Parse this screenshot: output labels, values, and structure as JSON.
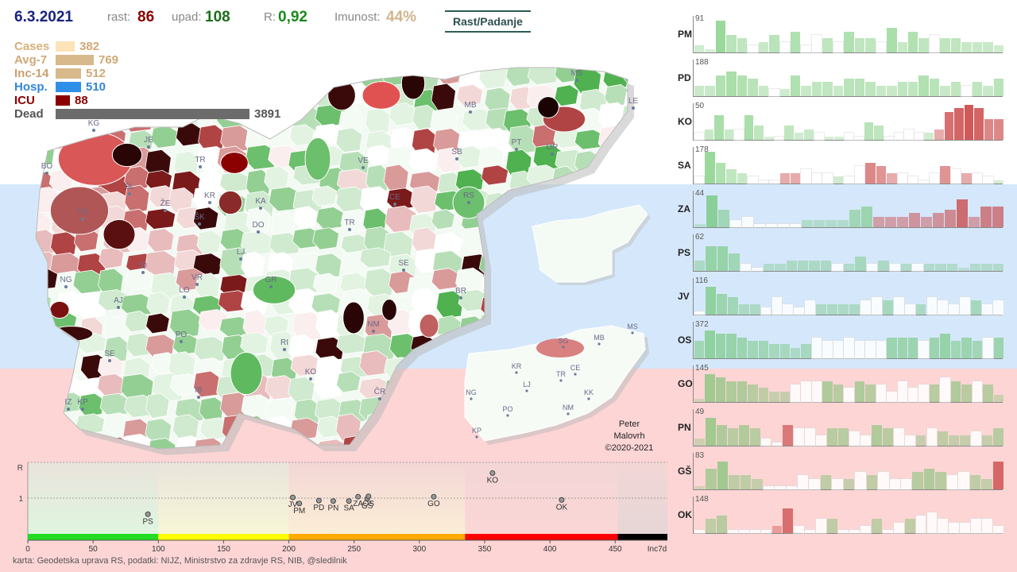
{
  "header": {
    "date": "6.3.2021",
    "rast_label": "rast:",
    "rast_value": "86",
    "upad_label": "upad:",
    "upad_value": "108",
    "r_label": "R:",
    "r_value": "0,92",
    "imunost_label": "Imunost:",
    "imunost_value": "44%",
    "mode_button": "Rast/Padanje"
  },
  "stats": [
    {
      "label": "Cases",
      "value": "382",
      "fraction": 0.098,
      "color": "#fde3b8",
      "label_color": "#d8b07a"
    },
    {
      "label": "Avg-7",
      "value": "769",
      "fraction": 0.198,
      "color": "#d8b98c",
      "label_color": "#d2a877"
    },
    {
      "label": "Inc-14",
      "value": "512",
      "fraction": 0.132,
      "color": "#d8b98c",
      "label_color": "#c9a06f"
    },
    {
      "label": "Hosp.",
      "value": "510",
      "fraction": 0.131,
      "color": "#2e8fe8",
      "label_color": "#2f86dd"
    },
    {
      "label": "ICU",
      "value": "88",
      "fraction": 0.023,
      "color": "#8b0000",
      "label_color": "#8b0000"
    },
    {
      "label": "Dead",
      "value": "3891",
      "fraction": 1.0,
      "color": "#6b6b6b",
      "label_color": "#555555"
    }
  ],
  "map_labels": [
    "KG",
    "JE",
    "BO",
    "TR",
    "KR",
    "ŠK",
    "ŽE",
    "ŠL",
    "KA",
    "DO",
    "TO",
    "TR",
    "LJ",
    "ID",
    "VR",
    "GR",
    "NG",
    "LO",
    "AJ",
    "SE",
    "PO",
    "RI",
    "KO",
    "NM",
    "BR",
    "SE",
    "IZ",
    "KP",
    "IB",
    "ČR",
    "MS",
    "MB",
    "LE",
    "SB",
    "PT",
    "OR",
    "VE",
    "CE",
    "RS"
  ],
  "mini_map_labels": [
    "MS",
    "MB",
    "SG",
    "KR",
    "CE",
    "TR",
    "LJ",
    "NG",
    "KK",
    "PO",
    "NM",
    "KP"
  ],
  "credit": [
    "Peter",
    "Malovrh",
    "©2020-2021"
  ],
  "footnote": "karta: Geodetska uprava RS,  podatki: NIJZ, Ministrstvo za zdravje RS, NIB, @sledilnik",
  "chart_data": [
    {
      "type": "scatter",
      "title": "",
      "xlabel": "Inc7d",
      "ylabel": "R",
      "xlim": [
        0,
        490
      ],
      "ylim": [
        0,
        2
      ],
      "x_ticks": [
        "0",
        "50",
        "100",
        "150",
        "200",
        "250",
        "300",
        "350",
        "400",
        "450"
      ],
      "y_ticks": [
        "R",
        "1"
      ],
      "x_axis_end_label": "Inc7d",
      "points": [
        {
          "label": "PS",
          "x": 92,
          "y": 0.55
        },
        {
          "label": "JV",
          "x": 203,
          "y": 1.02
        },
        {
          "label": "PM",
          "x": 208,
          "y": 0.85
        },
        {
          "label": "PD",
          "x": 223,
          "y": 0.93
        },
        {
          "label": "PN",
          "x": 234,
          "y": 0.92
        },
        {
          "label": "SA",
          "x": 246,
          "y": 0.92
        },
        {
          "label": "ZA",
          "x": 253,
          "y": 1.04
        },
        {
          "label": "GŠ",
          "x": 260,
          "y": 0.98
        },
        {
          "label": "OS",
          "x": 261,
          "y": 1.05
        },
        {
          "label": "GO",
          "x": 311,
          "y": 1.04
        },
        {
          "label": "KO",
          "x": 356,
          "y": 1.7
        },
        {
          "label": "OK",
          "x": 409,
          "y": 0.95
        }
      ],
      "band_colors": [
        "#22dd22",
        "#ffff00",
        "#ffaa00",
        "#ff0000",
        "#000000"
      ],
      "band_edges": [
        0,
        100,
        200,
        335,
        452,
        490
      ]
    },
    {
      "type": "bar",
      "title": "",
      "description": "per-region daily bars, colored by growth (green) / decline (red)",
      "series": [
        {
          "name": "PM",
          "max": "91",
          "values": [
            0.2,
            0.1,
            0.9,
            0.5,
            0.4,
            0.2,
            0.3,
            0.5,
            0.3,
            0.6,
            0.2,
            0.5,
            0.4,
            0.3,
            0.6,
            0.4,
            0.4,
            0.3,
            0.7,
            0.3,
            0.6,
            0.4,
            0.5,
            0.4,
            0.4,
            0.3,
            0.3,
            0.3,
            0.2
          ],
          "colors": [
            "g",
            "g",
            "g",
            "g",
            "g",
            "w",
            "g",
            "g",
            "w",
            "g",
            "w",
            "w",
            "g",
            "w",
            "g",
            "g",
            "g",
            "w",
            "g",
            "g",
            "g",
            "g",
            "w",
            "g",
            "g",
            "g",
            "g",
            "g",
            "g"
          ]
        },
        {
          "name": "PD",
          "max": "188",
          "values": [
            0.3,
            0.3,
            0.6,
            0.7,
            0.6,
            0.5,
            0.3,
            0.2,
            0.2,
            0.6,
            0.3,
            0.4,
            0.4,
            0.3,
            0.5,
            0.5,
            0.4,
            0.3,
            0.3,
            0.4,
            0.4,
            0.6,
            0.5,
            0.3,
            0.4,
            0.3,
            0.4,
            0.3,
            0.5
          ],
          "colors": [
            "g",
            "g",
            "g",
            "g",
            "g",
            "g",
            "g",
            "w",
            "g",
            "g",
            "g",
            "g",
            "g",
            "g",
            "g",
            "g",
            "g",
            "g",
            "g",
            "g",
            "g",
            "g",
            "g",
            "g",
            "g",
            "w",
            "g",
            "g",
            "g"
          ]
        },
        {
          "name": "KO",
          "max": "50",
          "values": [
            0.2,
            0.3,
            0.7,
            0.3,
            0.3,
            0.7,
            0.4,
            0.1,
            0.1,
            0.4,
            0.2,
            0.3,
            0.2,
            0.1,
            0.1,
            0.2,
            0.1,
            0.5,
            0.4,
            0.1,
            0.2,
            0.3,
            0.2,
            0.2,
            0.3,
            0.8,
            0.9,
            1.0,
            0.9,
            0.6,
            0.6
          ],
          "colors": [
            "w",
            "g",
            "g",
            "g",
            "w",
            "g",
            "g",
            "g",
            "w",
            "g",
            "g",
            "g",
            "w",
            "g",
            "g",
            "w",
            "w",
            "g",
            "g",
            "w",
            "w",
            "w",
            "w",
            "g",
            "r",
            "r",
            "r",
            "r",
            "r",
            "r",
            "r"
          ]
        },
        {
          "name": "SA",
          "max": "178",
          "values": [
            0.2,
            0.9,
            0.6,
            0.4,
            0.3,
            0.2,
            0.1,
            0.1,
            0.3,
            0.3,
            0.4,
            0.3,
            0.3,
            0.2,
            0.2,
            0.5,
            0.6,
            0.5,
            0.3,
            0.3,
            0.2,
            0.1,
            0.3,
            0.5,
            0.4,
            0.3,
            0.3,
            0.2,
            0.1
          ],
          "colors": [
            "w",
            "g",
            "g",
            "g",
            "g",
            "w",
            "w",
            "w",
            "r",
            "r",
            "w",
            "w",
            "w",
            "g",
            "w",
            "w",
            "r",
            "r",
            "r",
            "w",
            "w",
            "w",
            "w",
            "r",
            "w",
            "r",
            "w",
            "w",
            "g"
          ]
        },
        {
          "name": "ZA",
          "max": "44",
          "values": [
            0.1,
            0.9,
            0.5,
            0.2,
            0.3,
            0.1,
            0.1,
            0.1,
            0.1,
            0.2,
            0.2,
            0.2,
            0.2,
            0.5,
            0.6,
            0.3,
            0.3,
            0.3,
            0.4,
            0.3,
            0.4,
            0.5,
            0.8,
            0.3,
            0.6,
            0.6
          ],
          "colors": [
            "g",
            "g",
            "g",
            "w",
            "w",
            "w",
            "w",
            "w",
            "w",
            "g",
            "g",
            "g",
            "g",
            "g",
            "g",
            "r",
            "r",
            "r",
            "r",
            "r",
            "r",
            "r",
            "r",
            "r",
            "r",
            "r"
          ]
        },
        {
          "name": "PS",
          "max": "62",
          "values": [
            0.3,
            0.7,
            0.7,
            0.5,
            0.2,
            0.1,
            0.2,
            0.2,
            0.3,
            0.3,
            0.3,
            0.3,
            0.2,
            0.2,
            0.4,
            0.2,
            0.3,
            0.2,
            0.2,
            0.2,
            0.2,
            0.2,
            0.2,
            0.1,
            0.2,
            0.2,
            0.2
          ],
          "colors": [
            "g",
            "g",
            "g",
            "g",
            "w",
            "w",
            "g",
            "g",
            "g",
            "g",
            "g",
            "g",
            "w",
            "g",
            "g",
            "w",
            "g",
            "w",
            "g",
            "w",
            "g",
            "g",
            "g",
            "g",
            "g",
            "g",
            "g"
          ]
        },
        {
          "name": "JV",
          "max": "116",
          "values": [
            0.1,
            0.8,
            0.6,
            0.5,
            0.3,
            0.3,
            0.2,
            0.5,
            0.3,
            0.2,
            0.4,
            0.3,
            0.3,
            0.3,
            0.3,
            0.4,
            0.5,
            0.4,
            0.5,
            0.3,
            0.3,
            0.5,
            0.4,
            0.3,
            0.5,
            0.4,
            0.3,
            0.4
          ],
          "colors": [
            "w",
            "g",
            "g",
            "g",
            "g",
            "g",
            "w",
            "w",
            "w",
            "w",
            "w",
            "g",
            "g",
            "g",
            "g",
            "w",
            "w",
            "g",
            "w",
            "w",
            "g",
            "w",
            "w",
            "w",
            "w",
            "g",
            "w",
            "w"
          ]
        },
        {
          "name": "OS",
          "max": "372",
          "values": [
            0.5,
            0.8,
            0.7,
            0.7,
            0.6,
            0.5,
            0.5,
            0.4,
            0.4,
            0.3,
            0.4,
            0.6,
            0.5,
            0.5,
            0.6,
            0.5,
            0.5,
            0.5,
            0.6,
            0.6,
            0.6,
            0.5,
            0.6,
            0.7,
            0.5,
            0.6,
            0.5,
            0.6,
            0.6
          ],
          "colors": [
            "g",
            "g",
            "g",
            "g",
            "g",
            "g",
            "g",
            "g",
            "g",
            "g",
            "g",
            "w",
            "w",
            "w",
            "w",
            "w",
            "w",
            "w",
            "g",
            "g",
            "g",
            "w",
            "g",
            "g",
            "g",
            "g",
            "g",
            "w",
            "g"
          ]
        },
        {
          "name": "GO",
          "max": "145",
          "values": [
            0.1,
            0.8,
            0.7,
            0.6,
            0.6,
            0.5,
            0.4,
            0.3,
            0.3,
            0.5,
            0.6,
            0.6,
            0.6,
            0.5,
            0.4,
            0.6,
            0.5,
            0.5,
            0.3,
            0.6,
            0.4,
            0.5,
            0.5,
            0.7,
            0.6,
            0.5,
            0.6,
            0.5,
            0.2
          ],
          "colors": [
            "g",
            "g",
            "g",
            "g",
            "g",
            "g",
            "g",
            "g",
            "g",
            "w",
            "w",
            "w",
            "g",
            "g",
            "w",
            "g",
            "g",
            "w",
            "w",
            "w",
            "w",
            "w",
            "g",
            "w",
            "g",
            "g",
            "w",
            "g",
            "g"
          ]
        },
        {
          "name": "PN",
          "max": "49",
          "values": [
            0.2,
            0.8,
            0.6,
            0.5,
            0.6,
            0.5,
            0.2,
            0.1,
            0.6,
            0.5,
            0.5,
            0.3,
            0.5,
            0.5,
            0.4,
            0.3,
            0.6,
            0.5,
            0.5,
            0.3,
            0.3,
            0.5,
            0.4,
            0.3,
            0.3,
            0.4,
            0.3,
            0.5
          ],
          "colors": [
            "g",
            "g",
            "g",
            "g",
            "g",
            "g",
            "w",
            "w",
            "r",
            "w",
            "w",
            "w",
            "g",
            "g",
            "w",
            "w",
            "g",
            "g",
            "w",
            "w",
            "g",
            "w",
            "g",
            "g",
            "g",
            "w",
            "g",
            "g"
          ]
        },
        {
          "name": "GŠ",
          "max": "83",
          "values": [
            0.1,
            0.6,
            0.8,
            0.4,
            0.4,
            0.3,
            0.1,
            0.1,
            0.1,
            0.4,
            0.3,
            0.4,
            0.3,
            0.3,
            0.5,
            0.4,
            0.5,
            0.3,
            0.3,
            0.5,
            0.6,
            0.5,
            0.4,
            0.5,
            0.4,
            0.3,
            0.8
          ],
          "colors": [
            "g",
            "g",
            "g",
            "g",
            "g",
            "g",
            "w",
            "w",
            "w",
            "w",
            "w",
            "g",
            "w",
            "g",
            "w",
            "g",
            "w",
            "w",
            "w",
            "g",
            "g",
            "g",
            "w",
            "w",
            "g",
            "g",
            "r"
          ]
        },
        {
          "name": "OK",
          "max": "148",
          "values": [
            0.1,
            0.4,
            0.5,
            0.1,
            0.1,
            0.1,
            0.1,
            0.2,
            0.7,
            0.2,
            0.1,
            0.4,
            0.4,
            0.1,
            0.1,
            0.2,
            0.4,
            0.1,
            0.3,
            0.4,
            0.5,
            0.6,
            0.4,
            0.3,
            0.3,
            0.4,
            0.4,
            0.2
          ],
          "colors": [
            "w",
            "g",
            "g",
            "w",
            "w",
            "w",
            "w",
            "r",
            "r",
            "w",
            "w",
            "w",
            "g",
            "w",
            "w",
            "w",
            "g",
            "w",
            "w",
            "g",
            "w",
            "w",
            "w",
            "w",
            "w",
            "w",
            "w",
            "w"
          ]
        }
      ]
    }
  ]
}
